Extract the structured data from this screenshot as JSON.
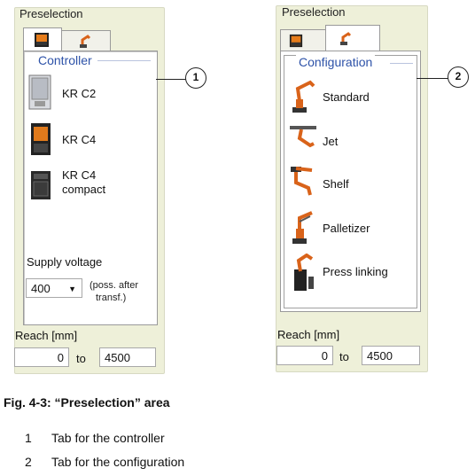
{
  "left_panel": {
    "title": "Preselection",
    "tabs": [
      {
        "icon": "controller-cabinet-icon"
      },
      {
        "icon": "robot-arm-icon"
      }
    ],
    "group_title": "Controller",
    "items": [
      {
        "label": "KR C2",
        "icon": "kr-c2-cabinet-icon"
      },
      {
        "label": "KR C4",
        "icon": "kr-c4-cabinet-icon"
      },
      {
        "label_line1": "KR C4",
        "label_line2": "compact",
        "icon": "kr-c4-compact-icon"
      }
    ],
    "supply_voltage_label": "Supply voltage",
    "voltage_value": "400",
    "voltage_note_line1": "(poss. after",
    "voltage_note_line2": "transf.)",
    "reach_label": "Reach [mm]",
    "reach_from": "0",
    "reach_to_word": "to",
    "reach_to": "4500",
    "callout": "1"
  },
  "right_panel": {
    "title": "Preselection",
    "tabs": [
      {
        "icon": "controller-cabinet-icon"
      },
      {
        "icon": "robot-arm-icon"
      }
    ],
    "group_title": "Configuration",
    "items": [
      {
        "label": "Standard",
        "icon": "standard-robot-icon"
      },
      {
        "label": "Jet",
        "icon": "jet-robot-icon"
      },
      {
        "label": "Shelf",
        "icon": "shelf-robot-icon"
      },
      {
        "label": "Palletizer",
        "icon": "palletizer-robot-icon"
      },
      {
        "label": "Press linking",
        "icon": "press-linking-robot-icon"
      }
    ],
    "reach_label": "Reach [mm]",
    "reach_from": "0",
    "reach_to_word": "to",
    "reach_to": "4500",
    "callout": "2"
  },
  "figure": {
    "caption": "Fig. 4-3: “Preselection” area",
    "legend": [
      {
        "number": "1",
        "text": "Tab for the controller"
      },
      {
        "number": "2",
        "text": "Tab for the configuration"
      }
    ]
  },
  "colors": {
    "panel_bg": "#eef0d9",
    "group_title": "#2d52a8",
    "robot_orange": "#d9631a"
  }
}
